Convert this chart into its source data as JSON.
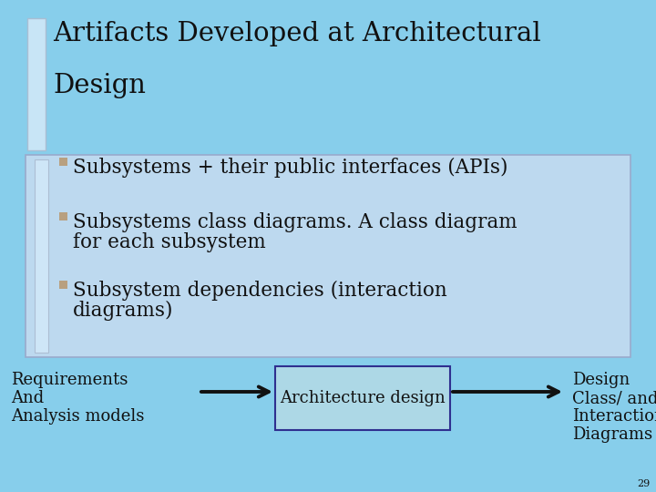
{
  "bg_color": "#87CEEB",
  "title_line1": "Artifacts Developed at Architectural",
  "title_line2": "Design",
  "title_color": "#111111",
  "title_fontsize": 21,
  "bullet_color": "#B8A080",
  "bullet_items_line1": [
    "Subsystems + their public interfaces (APIs)",
    "Subsystems class diagrams. A class diagram",
    "Subsystem dependencies (interaction"
  ],
  "bullet_items_line2": [
    "",
    "for each subsystem",
    "diagrams)"
  ],
  "bullet_fontsize": 15.5,
  "left_label_lines": [
    "Requirements",
    "And",
    "Analysis models"
  ],
  "center_label": "Architecture design",
  "right_label_lines": [
    "Design",
    "Class/ and",
    "Interaction",
    "Diagrams"
  ],
  "label_fontsize": 13,
  "box_facecolor": "#ADD8E6",
  "box_edgecolor": "#2F2F8F",
  "arrow_color": "#111111",
  "slide_number": "29",
  "content_box_bg": "#BDD9EF",
  "content_box_edge": "#99AACC",
  "title_bar_facecolor": "#D0E8F8",
  "title_bar_edgecolor": "#AABBD0"
}
